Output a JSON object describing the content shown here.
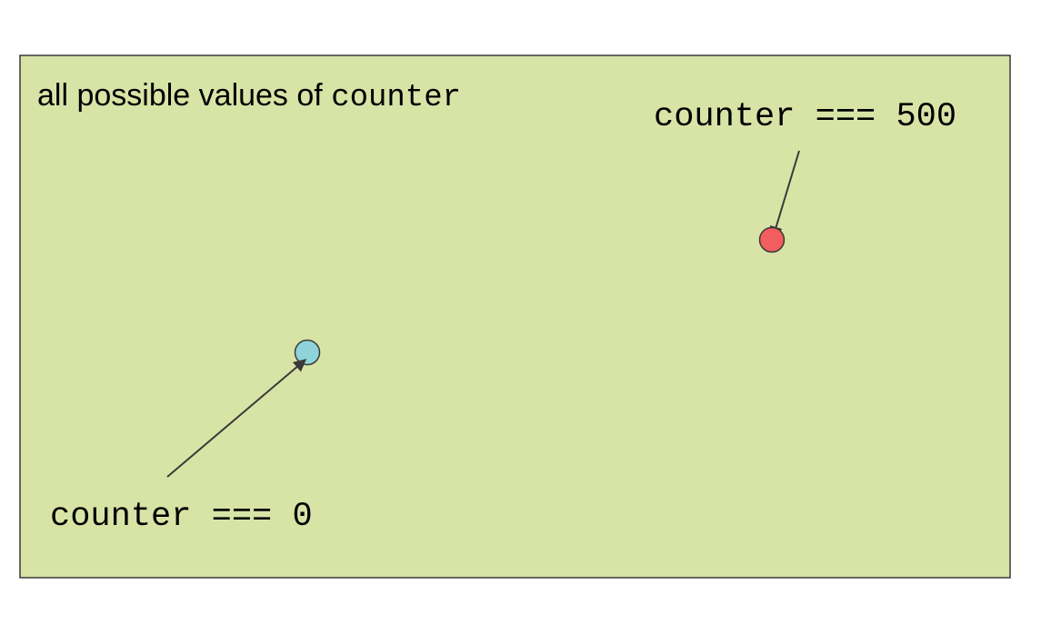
{
  "diagram": {
    "region": {
      "title_prefix": "all possible values of ",
      "title_code": "counter",
      "fill_color": "#d8e4a6",
      "border_color": "#3a3a3a"
    },
    "points": [
      {
        "id": "zero",
        "label": "counter === 0",
        "color": "#8fd3da"
      },
      {
        "id": "five-hundred",
        "label": "counter === 500",
        "color": "#f25d5d"
      }
    ],
    "arrow_color": "#3a3a3a"
  }
}
